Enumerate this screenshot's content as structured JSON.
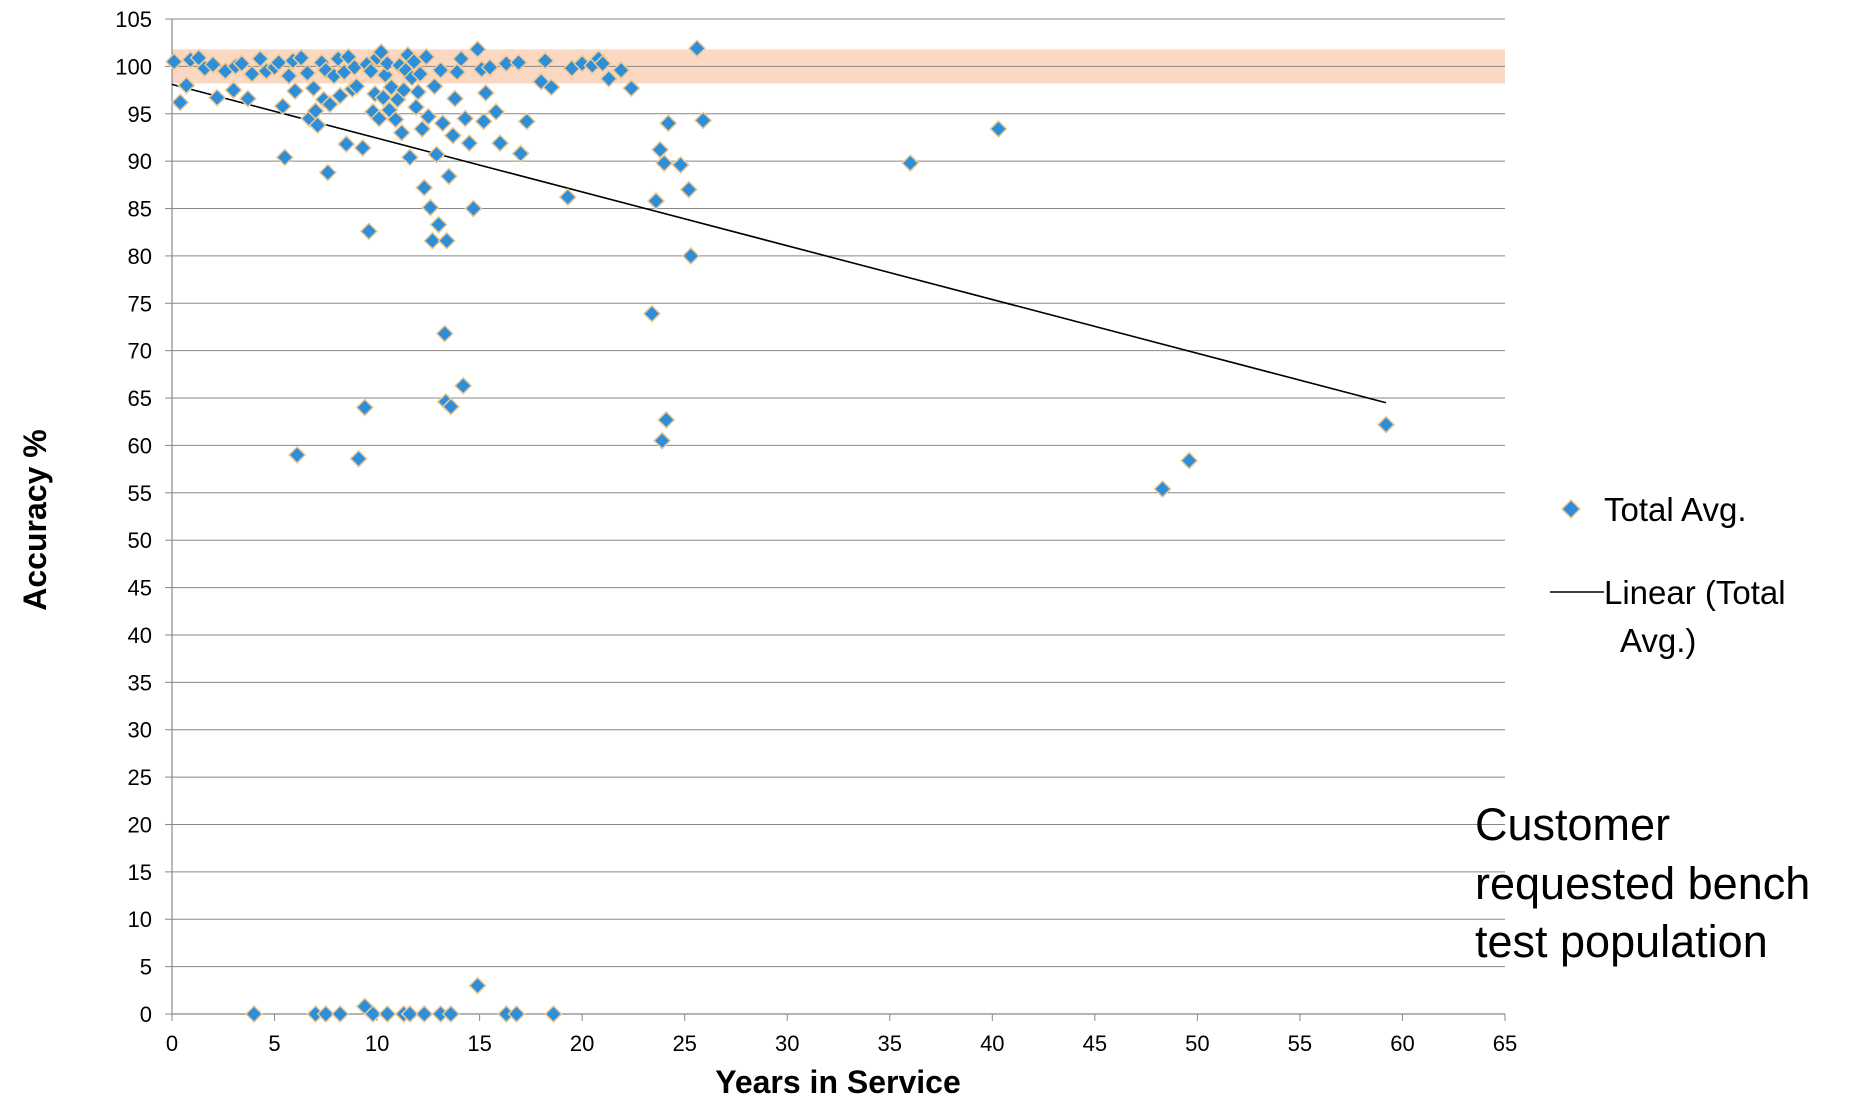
{
  "chart_data": {
    "type": "scatter",
    "xlabel": "Years in Service",
    "ylabel": "Accuracy %",
    "xlim": [
      0,
      65
    ],
    "ylim": [
      0,
      105
    ],
    "x_ticks": [
      0,
      5,
      10,
      15,
      20,
      25,
      30,
      35,
      40,
      45,
      50,
      55,
      60,
      65
    ],
    "y_ticks": [
      0,
      5,
      10,
      15,
      20,
      25,
      30,
      35,
      40,
      45,
      50,
      55,
      60,
      65,
      70,
      75,
      80,
      85,
      90,
      95,
      100,
      105
    ],
    "grid": "horizontal",
    "legend_position": "right",
    "target_band": {
      "y_range": [
        98.2,
        101.8
      ],
      "color": "#f8cbad"
    },
    "annotation": "Customer requested bench test population",
    "annotation_lines": [
      "Customer",
      "requested bench",
      "test population"
    ],
    "marker_color": "#2e8fd8",
    "marker_edge_color": "#f0c890",
    "series": [
      {
        "name": "Total Avg.",
        "marker": "diamond",
        "points": [
          [
            0.1,
            100.5
          ],
          [
            0.4,
            96.2
          ],
          [
            0.7,
            98.0
          ],
          [
            0.9,
            100.7
          ],
          [
            1.3,
            100.9
          ],
          [
            1.6,
            99.8
          ],
          [
            2.0,
            100.2
          ],
          [
            2.2,
            96.7
          ],
          [
            2.6,
            99.5
          ],
          [
            3.0,
            97.5
          ],
          [
            3.1,
            100.0
          ],
          [
            3.4,
            100.3
          ],
          [
            3.7,
            96.6
          ],
          [
            3.9,
            99.2
          ],
          [
            4.3,
            100.8
          ],
          [
            4.6,
            99.5
          ],
          [
            5.0,
            99.9
          ],
          [
            5.2,
            100.4
          ],
          [
            5.4,
            95.8
          ],
          [
            5.5,
            90.4
          ],
          [
            5.7,
            99.0
          ],
          [
            5.9,
            100.6
          ],
          [
            6.0,
            97.4
          ],
          [
            6.1,
            59.0
          ],
          [
            6.3,
            100.9
          ],
          [
            6.6,
            99.3
          ],
          [
            6.7,
            94.5
          ],
          [
            6.9,
            97.7
          ],
          [
            7.0,
            95.3
          ],
          [
            7.1,
            93.8
          ],
          [
            7.3,
            100.4
          ],
          [
            7.4,
            96.5
          ],
          [
            7.5,
            99.6
          ],
          [
            7.6,
            88.8
          ],
          [
            7.7,
            96.0
          ],
          [
            7.9,
            99.0
          ],
          [
            8.1,
            100.8
          ],
          [
            8.2,
            96.9
          ],
          [
            8.4,
            99.4
          ],
          [
            8.5,
            91.8
          ],
          [
            8.6,
            101.0
          ],
          [
            8.8,
            97.6
          ],
          [
            8.9,
            99.9
          ],
          [
            9.0,
            97.9
          ],
          [
            9.1,
            58.6
          ],
          [
            9.3,
            91.4
          ],
          [
            9.4,
            64.0
          ],
          [
            9.5,
            100.2
          ],
          [
            9.6,
            82.6
          ],
          [
            9.7,
            99.5
          ],
          [
            9.8,
            95.2
          ],
          [
            9.9,
            97.1
          ],
          [
            10.0,
            100.9
          ],
          [
            10.1,
            94.5
          ],
          [
            10.2,
            101.5
          ],
          [
            10.3,
            96.7
          ],
          [
            10.4,
            99.1
          ],
          [
            10.5,
            100.3
          ],
          [
            10.6,
            95.4
          ],
          [
            10.7,
            97.8
          ],
          [
            10.9,
            94.4
          ],
          [
            11.0,
            96.5
          ],
          [
            11.1,
            100.1
          ],
          [
            11.2,
            93.0
          ],
          [
            11.3,
            97.5
          ],
          [
            11.4,
            99.6
          ],
          [
            11.5,
            101.2
          ],
          [
            11.6,
            90.4
          ],
          [
            11.7,
            98.8
          ],
          [
            11.8,
            100.5
          ],
          [
            11.9,
            95.7
          ],
          [
            12.0,
            97.3
          ],
          [
            12.1,
            99.2
          ],
          [
            12.2,
            93.4
          ],
          [
            12.3,
            87.2
          ],
          [
            12.4,
            101.0
          ],
          [
            12.5,
            94.7
          ],
          [
            12.6,
            85.1
          ],
          [
            12.7,
            81.6
          ],
          [
            12.8,
            97.9
          ],
          [
            12.9,
            90.7
          ],
          [
            13.0,
            83.3
          ],
          [
            13.1,
            99.6
          ],
          [
            13.2,
            94.0
          ],
          [
            13.3,
            71.8
          ],
          [
            13.35,
            64.6
          ],
          [
            13.4,
            81.6
          ],
          [
            13.5,
            88.4
          ],
          [
            13.6,
            64.1
          ],
          [
            13.7,
            92.7
          ],
          [
            13.8,
            96.6
          ],
          [
            13.9,
            99.4
          ],
          [
            14.1,
            100.8
          ],
          [
            14.2,
            66.3
          ],
          [
            14.3,
            94.5
          ],
          [
            14.5,
            91.9
          ],
          [
            14.7,
            85.0
          ],
          [
            14.9,
            101.8
          ],
          [
            15.1,
            99.7
          ],
          [
            15.2,
            94.2
          ],
          [
            15.3,
            97.2
          ],
          [
            15.5,
            99.9
          ],
          [
            15.8,
            95.2
          ],
          [
            16.0,
            91.9
          ],
          [
            16.3,
            100.3
          ],
          [
            16.9,
            100.4
          ],
          [
            17.0,
            90.8
          ],
          [
            17.3,
            94.2
          ],
          [
            18.0,
            98.4
          ],
          [
            18.2,
            100.6
          ],
          [
            18.5,
            97.8
          ],
          [
            19.3,
            86.2
          ],
          [
            19.5,
            99.8
          ],
          [
            20.0,
            100.3
          ],
          [
            20.5,
            100.1
          ],
          [
            20.8,
            100.8
          ],
          [
            21.0,
            100.3
          ],
          [
            21.3,
            98.7
          ],
          [
            21.9,
            99.6
          ],
          [
            22.4,
            97.7
          ],
          [
            23.4,
            73.9
          ],
          [
            23.6,
            85.8
          ],
          [
            23.8,
            91.2
          ],
          [
            23.9,
            60.5
          ],
          [
            24.0,
            89.8
          ],
          [
            24.1,
            62.7
          ],
          [
            24.2,
            94.0
          ],
          [
            24.8,
            89.6
          ],
          [
            25.2,
            87.0
          ],
          [
            25.3,
            80.0
          ],
          [
            25.6,
            101.9
          ],
          [
            25.9,
            94.3
          ],
          [
            36.0,
            89.8
          ],
          [
            40.3,
            93.4
          ],
          [
            48.3,
            55.4
          ],
          [
            49.6,
            58.4
          ],
          [
            59.2,
            62.2
          ],
          [
            4.0,
            0.0
          ],
          [
            7.0,
            0.0
          ],
          [
            7.5,
            0.0
          ],
          [
            8.2,
            0.0
          ],
          [
            9.4,
            0.8
          ],
          [
            9.8,
            0.0
          ],
          [
            10.5,
            0.0
          ],
          [
            11.3,
            0.0
          ],
          [
            11.6,
            0.0
          ],
          [
            12.3,
            0.0
          ],
          [
            13.1,
            0.0
          ],
          [
            13.6,
            0.0
          ],
          [
            14.9,
            3.0
          ],
          [
            16.3,
            0.0
          ],
          [
            16.8,
            0.0
          ],
          [
            18.6,
            0.0
          ]
        ]
      },
      {
        "name": "Linear (Total Avg.)",
        "type": "trendline",
        "points": [
          [
            0,
            98.1
          ],
          [
            59.2,
            64.5
          ]
        ]
      }
    ]
  },
  "legend": {
    "scatter_label": "Total Avg.",
    "line_label_line1": "Linear (Total",
    "line_label_line2": "Avg.)"
  }
}
